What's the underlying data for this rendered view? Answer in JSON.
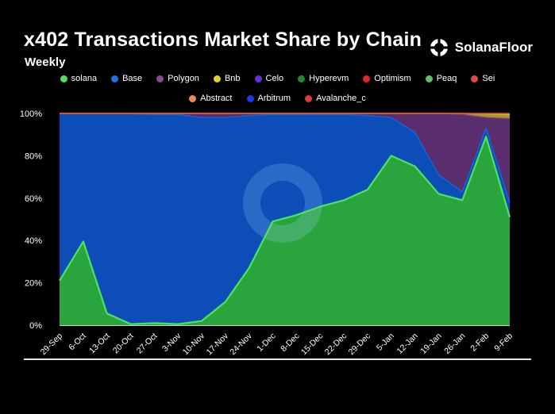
{
  "header": {
    "title": "x402 Transactions Market Share by Chain",
    "subtitle": "Weekly",
    "brand": "SolanaFloor"
  },
  "colors": {
    "background": "#000000",
    "solana": "#4ee35f",
    "base": "#1665d8",
    "polygon": "#7c3d84",
    "bnb": "#d9c327",
    "sei": "#d94a3d",
    "solana_fill": "#2aa43d",
    "base_fill": "#0c4db8",
    "polygon_fill": "#5a2d6e",
    "bnb_fill": "#a8982a"
  },
  "legend": {
    "row1": [
      {
        "label": "solana",
        "color": "#4ee35f"
      },
      {
        "label": "Base",
        "color": "#1a75e6"
      },
      {
        "label": "Polygon",
        "color": "#8a4a8f"
      },
      {
        "label": "Bnb",
        "color": "#e3cf2b"
      },
      {
        "label": "Celo",
        "color": "#6a2fe0"
      },
      {
        "label": "Hyperevm",
        "color": "#1f8b2e"
      },
      {
        "label": "Optimism",
        "color": "#e02727"
      },
      {
        "label": "Peaq",
        "color": "#5fbf6a"
      },
      {
        "label": "Sei",
        "color": "#e04a4a"
      }
    ],
    "row2": [
      {
        "label": "Abstract",
        "color": "#f08a5d"
      },
      {
        "label": "Arbitrum",
        "color": "#1a3be6"
      },
      {
        "label": "Avalanche_c",
        "color": "#e23a3a"
      }
    ]
  },
  "chart_data": {
    "type": "area",
    "title": "x402 Transactions Market Share by Chain",
    "subtitle": "Weekly",
    "stacked": true,
    "categories": [
      "29-Sep",
      "6-Oct",
      "13-Oct",
      "20-Oct",
      "27-Oct",
      "3-Nov",
      "10-Nov",
      "17-Nov",
      "24-Nov",
      "1-Dec",
      "8-Dec",
      "15-Dec",
      "22-Dec",
      "29-Dec",
      "5-Jan",
      "12-Jan",
      "19-Jan",
      "26-Jan",
      "2-Feb",
      "9-Feb"
    ],
    "y_ticks": [
      "0%",
      "20%",
      "40%",
      "60%",
      "80%",
      "100%"
    ],
    "ylim": [
      0,
      100
    ],
    "series": [
      {
        "name": "solana",
        "values": [
          21,
          39.5,
          5.5,
          0.5,
          1,
          0.5,
          2,
          11,
          27,
          49,
          52,
          56,
          59,
          64,
          80,
          75,
          62,
          59,
          89,
          51
        ]
      },
      {
        "name": "Base",
        "values": [
          79,
          60.5,
          94.5,
          99.3,
          98.5,
          99,
          96,
          87,
          72,
          50.5,
          47.5,
          43.5,
          40.5,
          35,
          18,
          16,
          9,
          4,
          4,
          7
        ]
      },
      {
        "name": "Polygon",
        "values": [
          0,
          0,
          0,
          0.2,
          0.5,
          0.5,
          2,
          2,
          1,
          0.5,
          0.5,
          0.5,
          0.5,
          1,
          2,
          9,
          29,
          36.5,
          5,
          39.5
        ]
      },
      {
        "name": "Bnb",
        "values": [
          0,
          0,
          0,
          0,
          0,
          0,
          0,
          0,
          0,
          0,
          0,
          0,
          0,
          0,
          0,
          0,
          0,
          0.5,
          1.8,
          2
        ]
      },
      {
        "name": "Sei",
        "values": [
          0,
          0,
          0,
          0,
          0,
          0,
          0,
          0,
          0,
          0,
          0,
          0,
          0,
          0,
          0,
          0,
          0,
          0,
          0.2,
          0.5
        ]
      }
    ]
  }
}
